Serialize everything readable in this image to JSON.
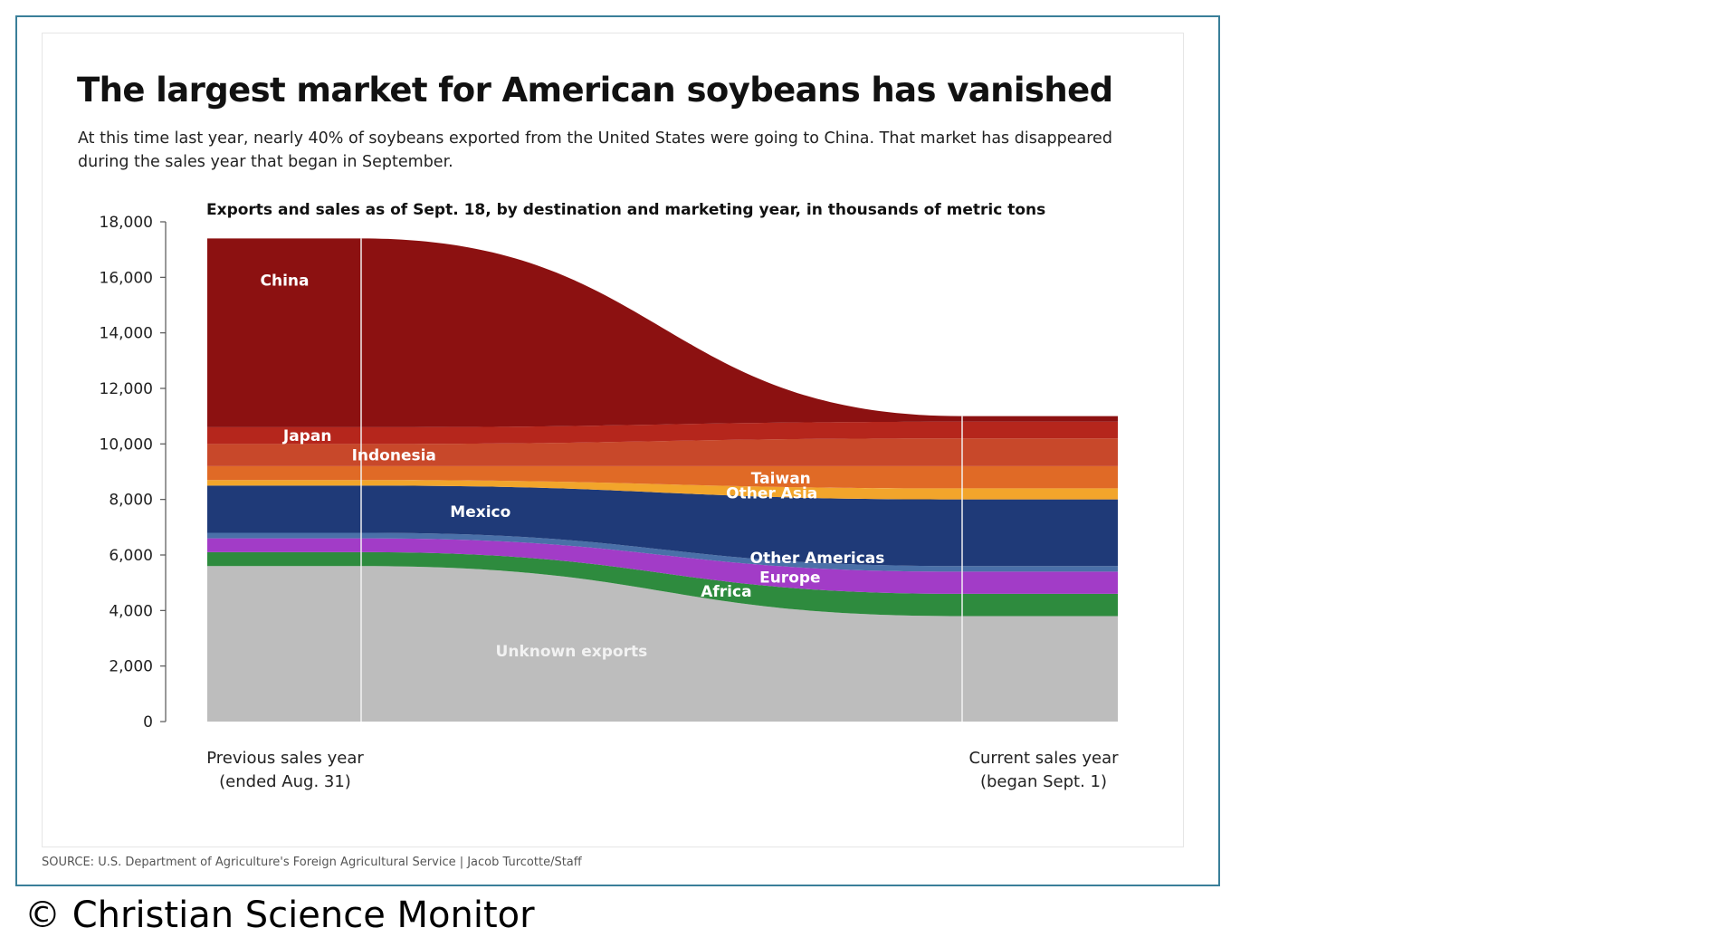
{
  "chart_data": {
    "type": "area",
    "subtype": "stacked-sankey-flow",
    "title": "The largest market for American soybeans has vanished",
    "subtitle": "At this time last year, nearly 40% of soybeans exported from the United States were going to China. That market has disappeared during the sales year that began in September.",
    "chart_title": "Exports and sales as of Sept. 18, by destination and marketing year, in thousands of metric tons",
    "categories": [
      "Previous sales year (ended Aug. 31)",
      "Current sales year (began Sept. 1)"
    ],
    "x_labels": [
      {
        "line1": "Previous sales year",
        "line2": "(ended Aug. 31)"
      },
      {
        "line1": "Current sales year",
        "line2": "(began Sept. 1)"
      }
    ],
    "ylim": [
      0,
      18000
    ],
    "yticks": [
      0,
      2000,
      4000,
      6000,
      8000,
      10000,
      12000,
      14000,
      16000,
      18000
    ],
    "ytick_labels": [
      "0",
      "2,000",
      "4,000",
      "6,000",
      "8,000",
      "10,000",
      "12,000",
      "14,000",
      "16,000",
      "18,000"
    ],
    "grid": false,
    "series": [
      {
        "name": "Unknown exports",
        "values": [
          5600,
          3800
        ],
        "color": "#bdbdbd",
        "label_color": "#f2f2f2"
      },
      {
        "name": "Africa",
        "values": [
          500,
          800
        ],
        "color": "#2e8b3e",
        "label_color": "#ffffff"
      },
      {
        "name": "Europe",
        "values": [
          500,
          800
        ],
        "color": "#a23cc7",
        "label_color": "#ffffff"
      },
      {
        "name": "Other Americas",
        "values": [
          200,
          200
        ],
        "color": "#4a70a8",
        "label_color": "#ffffff"
      },
      {
        "name": "Mexico",
        "values": [
          1700,
          2400
        ],
        "color": "#1f3a78",
        "label_color": "#ffffff"
      },
      {
        "name": "Other Asia",
        "values": [
          200,
          400
        ],
        "color": "#f2a52b",
        "label_color": "#ffffff"
      },
      {
        "name": "Taiwan",
        "values": [
          500,
          800
        ],
        "color": "#e06a26",
        "label_color": "#ffffff"
      },
      {
        "name": "Indonesia",
        "values": [
          800,
          1000
        ],
        "color": "#c8482a",
        "label_color": "#ffffff"
      },
      {
        "name": "Japan",
        "values": [
          600,
          600
        ],
        "color": "#b5261c",
        "label_color": "#ffffff"
      },
      {
        "name": "China",
        "values": [
          6800,
          200
        ],
        "color": "#8c1111",
        "label_color": "#ffffff"
      }
    ]
  },
  "source": "SOURCE: U.S. Department of Agriculture's Foreign Agricultural Service | Jacob Turcotte/Staff",
  "copyright": "© Christian Science Monitor"
}
